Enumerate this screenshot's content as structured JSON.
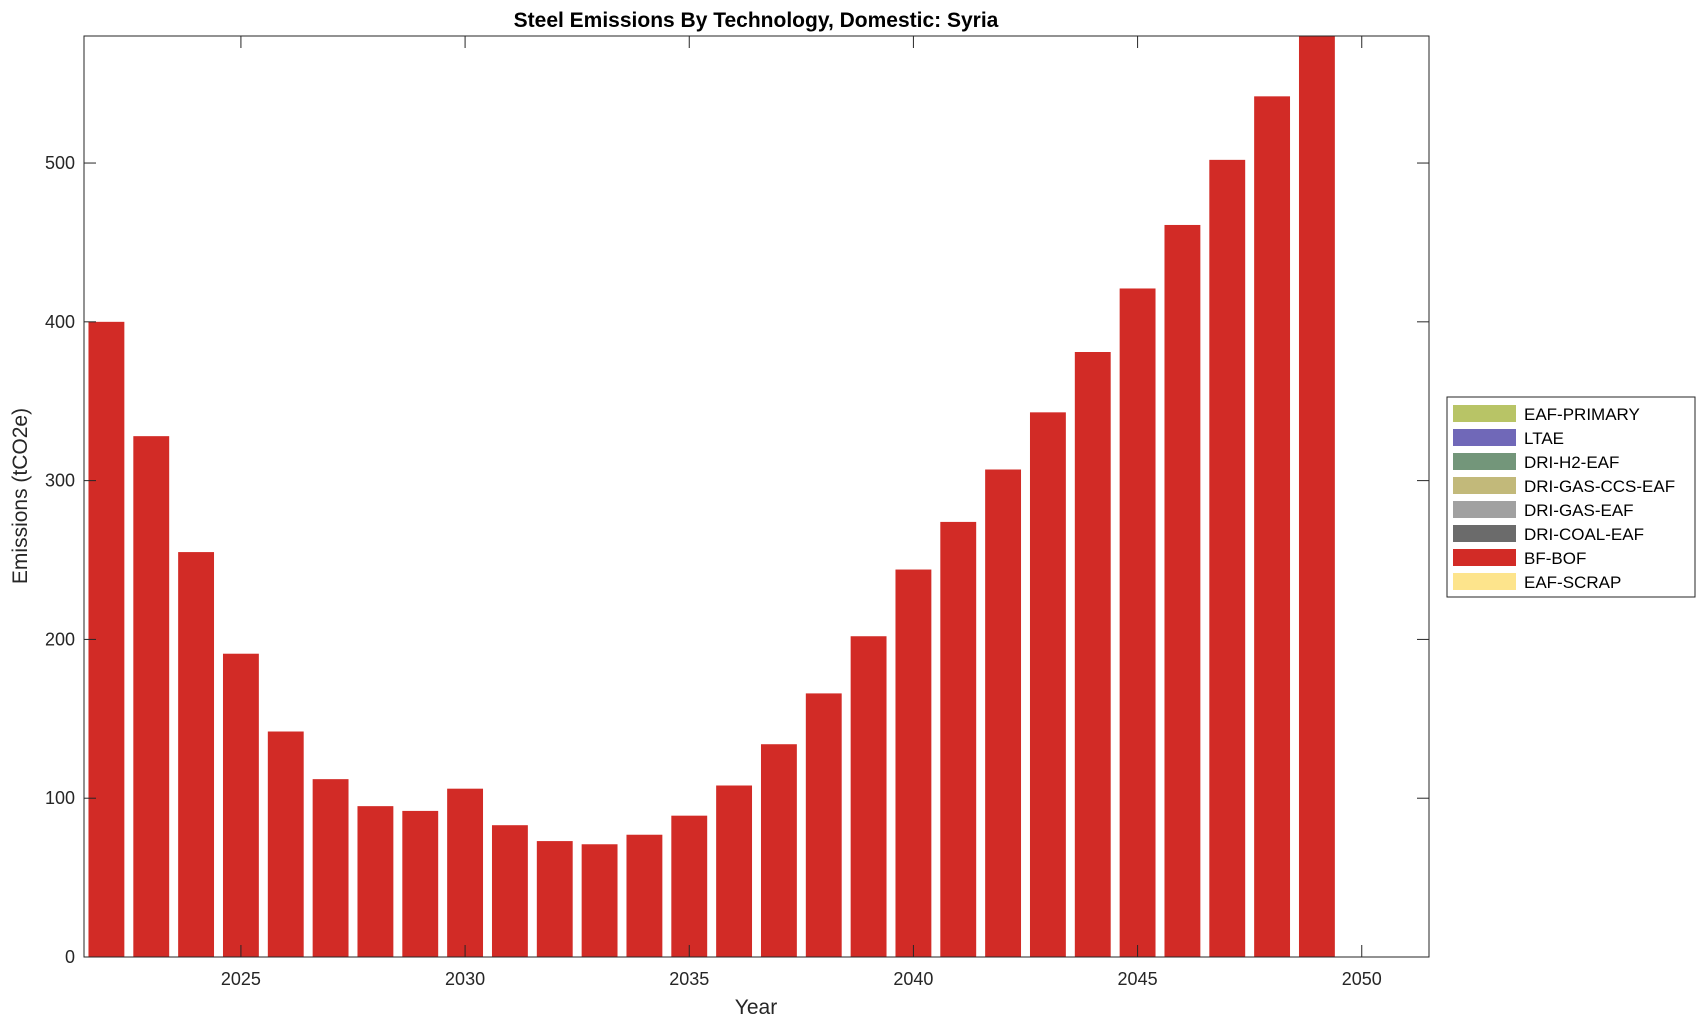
{
  "chart_data": {
    "type": "bar",
    "stacked": true,
    "title": "Steel Emissions By Technology, Domestic: Syria",
    "xlabel": "Year",
    "ylabel": "Emissions (tCO2e)",
    "xlim": [
      2021.5,
      2051.5
    ],
    "ylim": [
      0,
      580
    ],
    "xticks": [
      2025,
      2030,
      2035,
      2040,
      2045,
      2050
    ],
    "yticks": [
      0,
      100,
      200,
      300,
      400,
      500
    ],
    "grid": false,
    "legend_position": "right",
    "categories": [
      2022,
      2023,
      2024,
      2025,
      2026,
      2027,
      2028,
      2029,
      2030,
      2031,
      2032,
      2033,
      2034,
      2035,
      2036,
      2037,
      2038,
      2039,
      2040,
      2041,
      2042,
      2043,
      2044,
      2045,
      2046,
      2047,
      2048,
      2049
    ],
    "series": [
      {
        "name": "EAF-PRIMARY",
        "color": "#b8c466",
        "values": [
          0,
          0,
          0,
          0,
          0,
          0,
          0,
          0,
          0,
          0,
          0,
          0,
          0,
          0,
          0,
          0,
          0,
          0,
          0,
          0,
          0,
          0,
          0,
          0,
          0,
          0,
          0,
          0
        ]
      },
      {
        "name": "LTAE",
        "color": "#7068b8",
        "values": [
          0,
          0,
          0,
          0,
          0,
          0,
          0,
          0,
          0,
          0,
          0,
          0,
          0,
          0,
          0,
          0,
          0,
          0,
          0,
          0,
          0,
          0,
          0,
          0,
          0,
          0,
          0,
          0
        ]
      },
      {
        "name": "DRI-H2-EAF",
        "color": "#73967a",
        "values": [
          0,
          0,
          0,
          0,
          0,
          0,
          0,
          0,
          0,
          0,
          0,
          0,
          0,
          0,
          0,
          0,
          0,
          0,
          0,
          0,
          0,
          0,
          0,
          0,
          0,
          0,
          0,
          0
        ]
      },
      {
        "name": "DRI-GAS-CCS-EAF",
        "color": "#c2b97a",
        "values": [
          0,
          0,
          0,
          0,
          0,
          0,
          0,
          0,
          0,
          0,
          0,
          0,
          0,
          0,
          0,
          0,
          0,
          0,
          0,
          0,
          0,
          0,
          0,
          0,
          0,
          0,
          0,
          0
        ]
      },
      {
        "name": "DRI-GAS-EAF",
        "color": "#a1a1a1",
        "values": [
          0,
          0,
          0,
          0,
          0,
          0,
          0,
          0,
          0,
          0,
          0,
          0,
          0,
          0,
          0,
          0,
          0,
          0,
          0,
          0,
          0,
          0,
          0,
          0,
          0,
          0,
          0,
          0
        ]
      },
      {
        "name": "DRI-COAL-EAF",
        "color": "#6b6b6b",
        "values": [
          0,
          0,
          0,
          0,
          0,
          0,
          0,
          0,
          0,
          0,
          0,
          0,
          0,
          0,
          0,
          0,
          0,
          0,
          0,
          0,
          0,
          0,
          0,
          0,
          0,
          0,
          0,
          0
        ]
      },
      {
        "name": "BF-BOF",
        "color": "#d22b26",
        "values": [
          400,
          328,
          255,
          191,
          142,
          112,
          95,
          92,
          106,
          83,
          73,
          71,
          77,
          89,
          108,
          134,
          166,
          202,
          244,
          274,
          307,
          343,
          381,
          421,
          461,
          502,
          542,
          580
        ]
      },
      {
        "name": "EAF-SCRAP",
        "color": "#fde48c",
        "values": [
          0,
          0,
          0,
          0,
          0,
          0,
          0,
          0,
          0,
          0,
          0,
          0,
          0,
          0,
          0,
          0,
          0,
          0,
          0,
          0,
          0,
          0,
          0,
          0,
          0,
          0,
          0,
          0
        ]
      }
    ]
  }
}
